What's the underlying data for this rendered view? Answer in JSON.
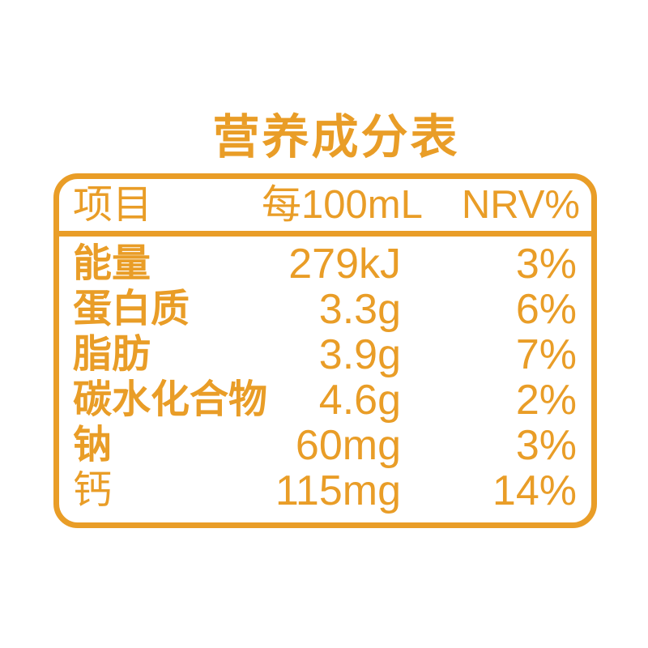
{
  "title": "营养成分表",
  "colors": {
    "accent": "#E99D27",
    "background": "#FFFFFF"
  },
  "table": {
    "headers": {
      "item": "项目",
      "per": "每100mL",
      "nrv": "NRV%"
    },
    "rows": [
      {
        "label": "能量",
        "value": "279kJ",
        "nrv": "3%"
      },
      {
        "label": "蛋白质",
        "value": "3.3g",
        "nrv": "6%"
      },
      {
        "label": "脂肪",
        "value": "3.9g",
        "nrv": "7%"
      },
      {
        "label": "碳水化合物",
        "value": "4.6g",
        "nrv": "2%"
      },
      {
        "label": "钠",
        "value": "60mg",
        "nrv": "3%"
      },
      {
        "label": "钙",
        "value": "115mg",
        "nrv": "14%"
      }
    ]
  }
}
